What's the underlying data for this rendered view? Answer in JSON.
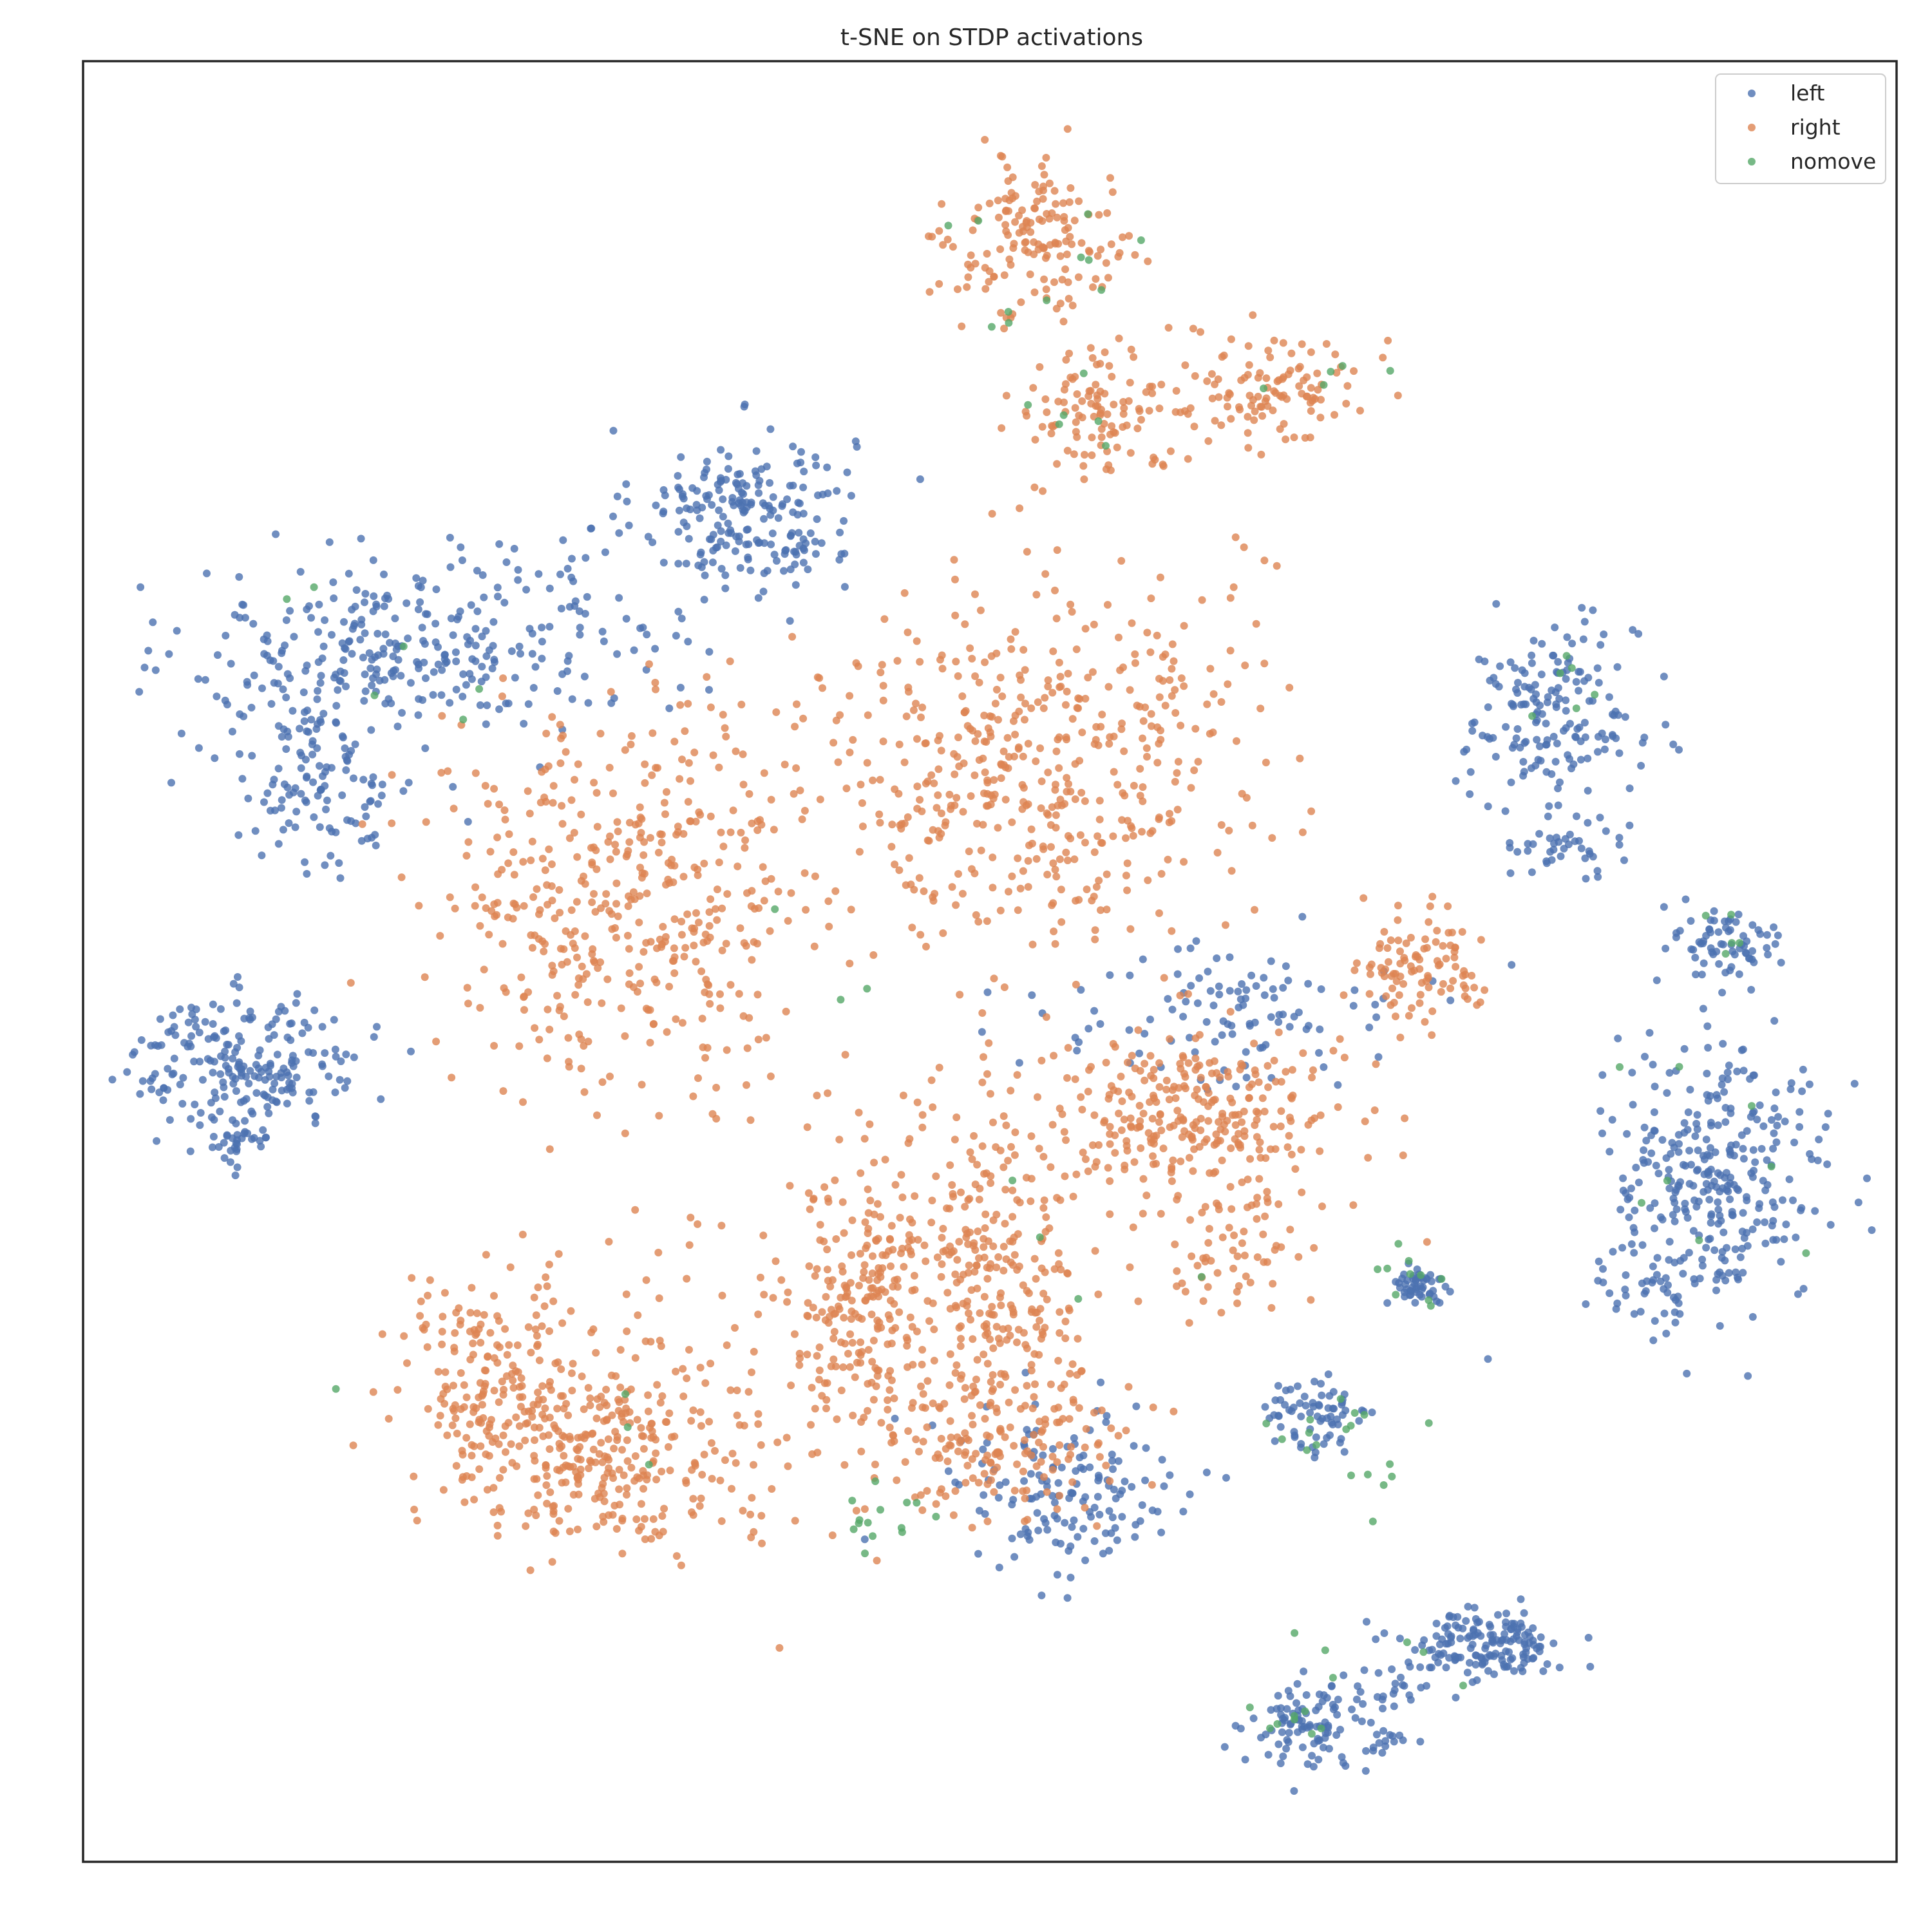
{
  "chart_data": {
    "type": "scatter",
    "title": "t-SNE on STDP activations",
    "xlabel": "",
    "ylabel": "",
    "xlim": [
      0,
      100
    ],
    "ylim": [
      0,
      100
    ],
    "axis_ticks": false,
    "grid": false,
    "legend_position": "top-right",
    "series": [
      {
        "name": "left",
        "color": "#4c72b0",
        "clusters": [
          {
            "cx": 36.5,
            "cy": 75.0,
            "sx": 3.0,
            "sy": 2.3,
            "n": 210
          },
          {
            "cx": 16.0,
            "cy": 67.0,
            "sx": 5.0,
            "sy": 2.4,
            "n": 230
          },
          {
            "cx": 13.0,
            "cy": 60.0,
            "sx": 2.8,
            "sy": 2.5,
            "n": 120
          },
          {
            "cx": 26.0,
            "cy": 69.0,
            "sx": 4.0,
            "sy": 2.5,
            "n": 90
          },
          {
            "cx": 9.0,
            "cy": 44.5,
            "sx": 3.2,
            "sy": 1.8,
            "n": 210
          },
          {
            "cx": 8.5,
            "cy": 40.0,
            "sx": 1.0,
            "sy": 0.8,
            "n": 35
          },
          {
            "cx": 81.0,
            "cy": 63.5,
            "sx": 2.4,
            "sy": 2.6,
            "n": 170
          },
          {
            "cx": 82.0,
            "cy": 56.5,
            "sx": 1.5,
            "sy": 0.7,
            "n": 40
          },
          {
            "cx": 90.5,
            "cy": 51.0,
            "sx": 1.5,
            "sy": 1.2,
            "n": 70
          },
          {
            "cx": 90.0,
            "cy": 38.0,
            "sx": 3.2,
            "sy": 3.6,
            "n": 320
          },
          {
            "cx": 87.0,
            "cy": 31.5,
            "sx": 1.0,
            "sy": 0.6,
            "n": 25
          },
          {
            "cx": 63.0,
            "cy": 47.0,
            "sx": 5.0,
            "sy": 2.0,
            "n": 110
          },
          {
            "cx": 54.0,
            "cy": 20.5,
            "sx": 3.4,
            "sy": 2.6,
            "n": 150
          },
          {
            "cx": 73.5,
            "cy": 32.0,
            "sx": 0.8,
            "sy": 0.6,
            "n": 50
          },
          {
            "cx": 68.0,
            "cy": 24.5,
            "sx": 1.6,
            "sy": 1.2,
            "n": 70
          },
          {
            "cx": 77.0,
            "cy": 12.0,
            "sx": 2.3,
            "sy": 1.0,
            "n": 160
          },
          {
            "cx": 67.5,
            "cy": 7.5,
            "sx": 1.5,
            "sy": 1.1,
            "n": 90
          },
          {
            "cx": 71.0,
            "cy": 9.5,
            "sx": 2.0,
            "sy": 0.6,
            "n": 25
          },
          {
            "cx": 71.5,
            "cy": 6.5,
            "sx": 1.0,
            "sy": 0.4,
            "n": 15
          }
        ]
      },
      {
        "name": "right",
        "color": "#dd8452",
        "clusters": [
          {
            "cx": 53.0,
            "cy": 90.0,
            "sx": 2.5,
            "sy": 2.2,
            "n": 160
          },
          {
            "cx": 55.5,
            "cy": 80.5,
            "sx": 2.3,
            "sy": 1.7,
            "n": 110
          },
          {
            "cx": 66.0,
            "cy": 82.0,
            "sx": 2.5,
            "sy": 1.6,
            "n": 110
          },
          {
            "cx": 52.0,
            "cy": 61.0,
            "sx": 6.0,
            "sy": 5.5,
            "n": 500
          },
          {
            "cx": 30.0,
            "cy": 53.5,
            "sx": 5.2,
            "sy": 5.0,
            "n": 440
          },
          {
            "cx": 29.0,
            "cy": 23.0,
            "sx": 3.5,
            "sy": 2.5,
            "n": 240
          },
          {
            "cx": 23.0,
            "cy": 26.5,
            "sx": 3.0,
            "sy": 2.8,
            "n": 200
          },
          {
            "cx": 43.0,
            "cy": 31.0,
            "sx": 2.0,
            "sy": 4.2,
            "n": 220
          },
          {
            "cx": 50.0,
            "cy": 32.5,
            "sx": 2.5,
            "sy": 5.0,
            "n": 300
          },
          {
            "cx": 61.5,
            "cy": 41.0,
            "sx": 4.0,
            "sy": 2.5,
            "n": 300
          },
          {
            "cx": 74.0,
            "cy": 49.5,
            "sx": 1.8,
            "sy": 1.6,
            "n": 100
          },
          {
            "cx": 51.0,
            "cy": 23.0,
            "sx": 3.5,
            "sy": 2.2,
            "n": 130
          },
          {
            "cx": 63.5,
            "cy": 33.5,
            "sx": 2.0,
            "sy": 1.4,
            "n": 50
          },
          {
            "cx": 34.0,
            "cy": 26.0,
            "sx": 5.0,
            "sy": 6.0,
            "n": 90
          }
        ]
      },
      {
        "name": "nomove",
        "color": "#55a868",
        "clusters": [
          {
            "cx": 51.5,
            "cy": 88.0,
            "sx": 3.5,
            "sy": 3.0,
            "n": 12
          },
          {
            "cx": 54.0,
            "cy": 79.5,
            "sx": 1.8,
            "sy": 1.2,
            "n": 5
          },
          {
            "cx": 69.0,
            "cy": 83.0,
            "sx": 2.0,
            "sy": 1.2,
            "n": 5
          },
          {
            "cx": 15.0,
            "cy": 66.0,
            "sx": 4.0,
            "sy": 3.0,
            "n": 6
          },
          {
            "cx": 82.0,
            "cy": 64.0,
            "sx": 1.5,
            "sy": 1.5,
            "n": 6
          },
          {
            "cx": 90.5,
            "cy": 51.5,
            "sx": 1.2,
            "sy": 1.0,
            "n": 5
          },
          {
            "cx": 73.5,
            "cy": 32.5,
            "sx": 1.2,
            "sy": 1.0,
            "n": 10
          },
          {
            "cx": 69.5,
            "cy": 23.5,
            "sx": 2.0,
            "sy": 2.0,
            "n": 18
          },
          {
            "cx": 43.5,
            "cy": 19.5,
            "sx": 1.2,
            "sy": 0.8,
            "n": 14
          },
          {
            "cx": 56.0,
            "cy": 32.0,
            "sx": 3.0,
            "sy": 3.0,
            "n": 4
          },
          {
            "cx": 89.0,
            "cy": 40.0,
            "sx": 3.0,
            "sy": 3.0,
            "n": 8
          },
          {
            "cx": 67.0,
            "cy": 8.0,
            "sx": 1.5,
            "sy": 1.0,
            "n": 8
          },
          {
            "cx": 72.0,
            "cy": 11.0,
            "sx": 3.5,
            "sy": 1.0,
            "n": 6
          },
          {
            "cx": 25.0,
            "cy": 27.0,
            "sx": 5.0,
            "sy": 2.0,
            "n": 4
          },
          {
            "cx": 40.5,
            "cy": 50.0,
            "sx": 4.0,
            "sy": 3.0,
            "n": 3
          }
        ]
      }
    ]
  }
}
